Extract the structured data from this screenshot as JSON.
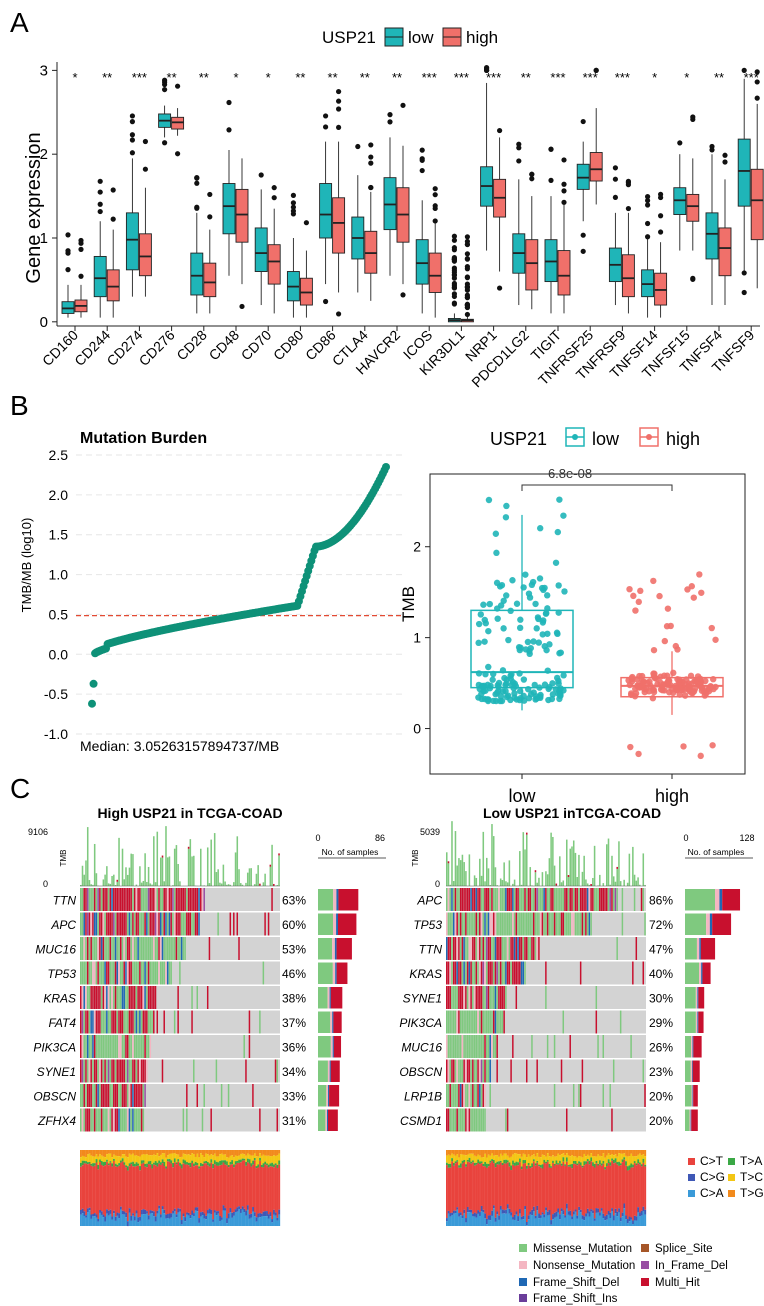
{
  "panel_a": {
    "label": "A",
    "legend_title": "USP21",
    "legend_low": "low",
    "legend_high": "high",
    "color_low": "#1fb5b8",
    "color_high": "#f0706a"
  },
  "panel_b": {
    "label": "B",
    "median_text": "Median: 3.05263157894737/MB",
    "pval": "6.8e-08",
    "legend_title": "USP21",
    "legend_low": "low",
    "legend_high": "high",
    "dot_color": "#0e9178",
    "median_line_color": "#e34a33"
  },
  "panel_c": {
    "label": "C",
    "left": {
      "title": "High USP21 in TCGA-COAD",
      "tmb_label": "TMB",
      "tmb_max": "9106",
      "tmb_min": "0",
      "ns_label": "No. of samples",
      "ns_min": "0",
      "ns_max": "86",
      "genes": [
        {
          "name": "TTN",
          "pct": "63%"
        },
        {
          "name": "APC",
          "pct": "60%"
        },
        {
          "name": "MUC16",
          "pct": "53%"
        },
        {
          "name": "TP53",
          "pct": "46%"
        },
        {
          "name": "KRAS",
          "pct": "38%"
        },
        {
          "name": "FAT4",
          "pct": "37%"
        },
        {
          "name": "PIK3CA",
          "pct": "36%"
        },
        {
          "name": "SYNE1",
          "pct": "34%"
        },
        {
          "name": "OBSCN",
          "pct": "33%"
        },
        {
          "name": "ZFHX4",
          "pct": "31%"
        }
      ]
    },
    "right": {
      "title": "Low USP21 inTCGA-COAD",
      "tmb_label": "TMB",
      "tmb_max": "5039",
      "tmb_min": "0",
      "ns_label": "No. of samples",
      "ns_min": "0",
      "ns_max": "128",
      "genes": [
        {
          "name": "APC",
          "pct": "86%"
        },
        {
          "name": "TP53",
          "pct": "72%"
        },
        {
          "name": "TTN",
          "pct": "47%"
        },
        {
          "name": "KRAS",
          "pct": "40%"
        },
        {
          "name": "SYNE1",
          "pct": "30%"
        },
        {
          "name": "PIK3CA",
          "pct": "29%"
        },
        {
          "name": "MUC16",
          "pct": "26%"
        },
        {
          "name": "OBSCN",
          "pct": "23%"
        },
        {
          "name": "LRP1B",
          "pct": "20%"
        },
        {
          "name": "CSMD1",
          "pct": "20%"
        }
      ]
    },
    "snv_legend": [
      {
        "label": "C>T",
        "color": "#e9433d"
      },
      {
        "label": "T>A",
        "color": "#3aa845"
      },
      {
        "label": "C>G",
        "color": "#3f58b6"
      },
      {
        "label": "T>C",
        "color": "#f3c614"
      },
      {
        "label": "C>A",
        "color": "#3a9ad8"
      },
      {
        "label": "T>G",
        "color": "#f28a1c"
      }
    ],
    "var_legend": [
      {
        "label": "Missense_Mutation",
        "color": "#7fc97f"
      },
      {
        "label": "Splice_Site",
        "color": "#a65628"
      },
      {
        "label": "Nonsense_Mutation",
        "color": "#f4b6c2"
      },
      {
        "label": "In_Frame_Del",
        "color": "#984ea3"
      },
      {
        "label": "Frame_Shift_Del",
        "color": "#1f68b4"
      },
      {
        "label": "Multi_Hit",
        "color": "#c8102e"
      },
      {
        "label": "Frame_Shift_Ins",
        "color": "#6a3d9a"
      }
    ]
  },
  "chart_data": [
    {
      "type": "box",
      "title": "",
      "xlabel": "",
      "ylabel": "Gene expression",
      "ylim": [
        -0.05,
        3.1
      ],
      "yticks": [
        "0",
        "1",
        "2",
        "3"
      ],
      "categories": [
        "CD160",
        "CD244",
        "CD274",
        "CD276",
        "CD28",
        "CD48",
        "CD70",
        "CD80",
        "CD86",
        "CTLA4",
        "HAVCR2",
        "ICOS",
        "KIR3DL1",
        "NRP1",
        "PDCD1LG2",
        "TIGIT",
        "TNFRSF25",
        "TNFRSF9",
        "TNFSF14",
        "TNFSF15",
        "TNFSF4",
        "TNFSF9"
      ],
      "significance": [
        "*",
        "**",
        "***",
        "**",
        "**",
        "*",
        "*",
        "**",
        "**",
        "**",
        "**",
        "***",
        "***",
        "***",
        "**",
        "***",
        "***",
        "***",
        "*",
        "*",
        "**",
        "***"
      ],
      "series": [
        {
          "name": "low",
          "values": [
            [
              0.05,
              0.1,
              0.16,
              0.24,
              0.44
            ],
            [
              0.05,
              0.3,
              0.52,
              0.78,
              1.2
            ],
            [
              0.3,
              0.62,
              0.98,
              1.3,
              1.95
            ],
            [
              2.2,
              2.32,
              2.4,
              2.48,
              2.58
            ],
            [
              0.1,
              0.32,
              0.55,
              0.82,
              1.3
            ],
            [
              0.55,
              1.05,
              1.38,
              1.65,
              2.05
            ],
            [
              0.2,
              0.6,
              0.82,
              1.12,
              1.58
            ],
            [
              0.05,
              0.25,
              0.42,
              0.6,
              1.0
            ],
            [
              0.45,
              1.0,
              1.28,
              1.65,
              2.15
            ],
            [
              0.35,
              0.75,
              1.0,
              1.25,
              1.75
            ],
            [
              0.55,
              1.1,
              1.4,
              1.72,
              2.2
            ],
            [
              0.1,
              0.45,
              0.7,
              0.98,
              1.45
            ],
            [
              0.0,
              0.0,
              0.02,
              0.04,
              0.1
            ],
            [
              0.85,
              1.38,
              1.62,
              1.85,
              2.85
            ],
            [
              0.2,
              0.58,
              0.82,
              1.05,
              1.7
            ],
            [
              0.1,
              0.48,
              0.72,
              0.98,
              1.5
            ],
            [
              1.2,
              1.58,
              1.72,
              1.88,
              2.15
            ],
            [
              0.2,
              0.48,
              0.68,
              0.88,
              1.3
            ],
            [
              0.05,
              0.3,
              0.45,
              0.62,
              1.0
            ],
            [
              0.85,
              1.28,
              1.45,
              1.6,
              2.0
            ],
            [
              0.2,
              0.75,
              1.05,
              1.3,
              2.0
            ],
            [
              0.6,
              1.38,
              1.8,
              2.18,
              2.9
            ]
          ]
        },
        {
          "name": "high",
          "values": [
            [
              0.05,
              0.12,
              0.19,
              0.26,
              0.44
            ],
            [
              0.05,
              0.25,
              0.42,
              0.62,
              1.1
            ],
            [
              0.3,
              0.55,
              0.78,
              1.05,
              1.6
            ],
            [
              2.22,
              2.3,
              2.38,
              2.44,
              2.55
            ],
            [
              0.1,
              0.3,
              0.47,
              0.7,
              1.1
            ],
            [
              0.45,
              0.95,
              1.28,
              1.58,
              1.95
            ],
            [
              0.1,
              0.45,
              0.72,
              0.92,
              1.35
            ],
            [
              0.05,
              0.2,
              0.35,
              0.52,
              0.85
            ],
            [
              0.35,
              0.82,
              1.18,
              1.48,
              2.15
            ],
            [
              0.25,
              0.58,
              0.82,
              1.08,
              1.55
            ],
            [
              0.45,
              0.95,
              1.28,
              1.6,
              2.1
            ],
            [
              0.05,
              0.35,
              0.55,
              0.82,
              1.2
            ],
            [
              0.0,
              0.0,
              0.02,
              0.03,
              0.08
            ],
            [
              0.6,
              1.25,
              1.48,
              1.7,
              2.2
            ],
            [
              0.15,
              0.38,
              0.7,
              0.98,
              1.5
            ],
            [
              0.1,
              0.32,
              0.55,
              0.85,
              1.4
            ],
            [
              1.4,
              1.68,
              1.82,
              2.02,
              2.55
            ],
            [
              0.1,
              0.3,
              0.52,
              0.8,
              1.3
            ],
            [
              0.05,
              0.2,
              0.38,
              0.58,
              0.95
            ],
            [
              0.85,
              1.2,
              1.38,
              1.52,
              1.95
            ],
            [
              0.2,
              0.55,
              0.88,
              1.12,
              1.7
            ],
            [
              0.4,
              0.98,
              1.45,
              1.82,
              2.6
            ]
          ]
        }
      ]
    },
    {
      "type": "scatter",
      "title": "Mutation Burden",
      "xlabel": "",
      "ylabel": "TMB/MB (log10)",
      "ylim": [
        -1.0,
        2.5
      ],
      "yticks": [
        "-1.0",
        "-0.5",
        "0.0",
        "0.5",
        "1.0",
        "1.5",
        "2.0",
        "2.5"
      ],
      "median_log10": 0.485,
      "note": "samples sorted ascending by log10 TMB"
    },
    {
      "type": "box",
      "title": "",
      "xlabel": "",
      "ylabel": "TMB",
      "ylim": [
        -0.5,
        2.8
      ],
      "yticks": [
        "0",
        "1",
        "2"
      ],
      "categories": [
        "low",
        "high"
      ],
      "values": [
        [
          0.2,
          0.45,
          0.62,
          1.3,
          2.35
        ],
        [
          0.15,
          0.35,
          0.47,
          0.56,
          0.85
        ]
      ],
      "pval": "6.8e-08"
    }
  ]
}
